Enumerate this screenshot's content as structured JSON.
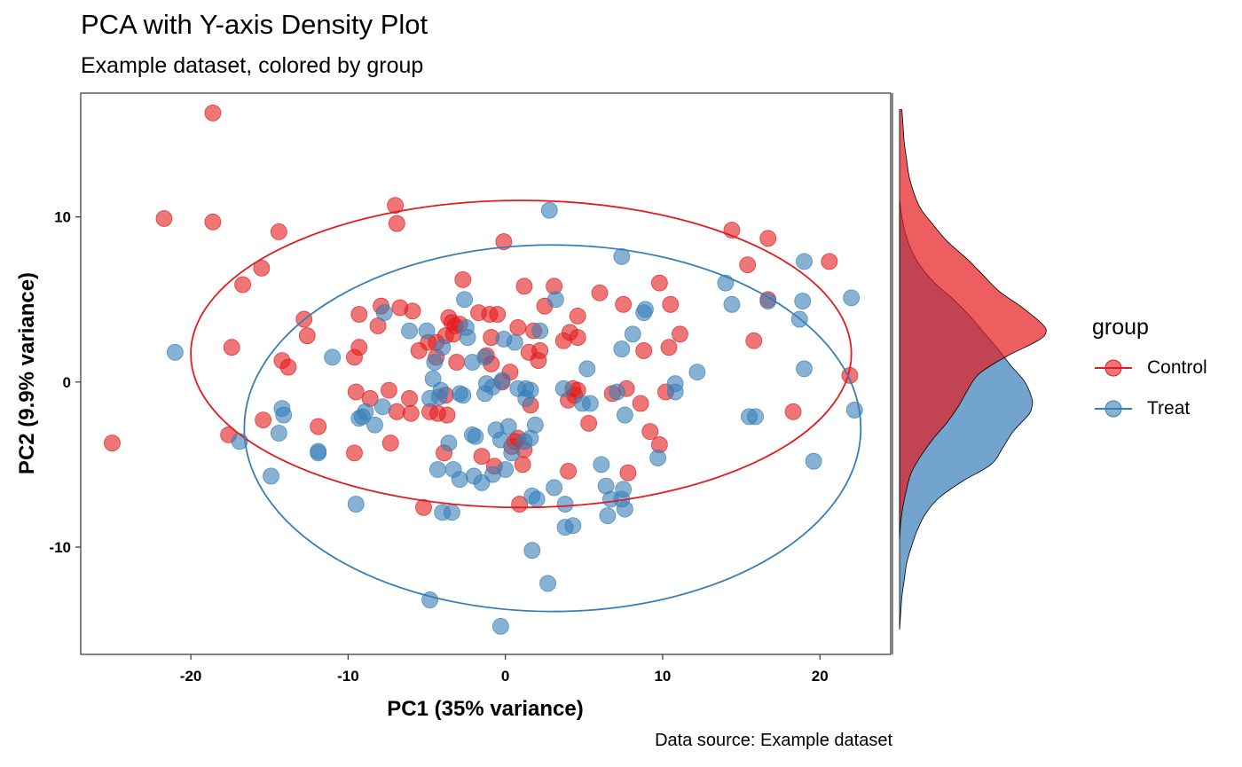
{
  "title": "PCA with Y-axis Density Plot",
  "subtitle": "Example dataset, colored by group",
  "caption": "Data source: Example dataset",
  "chart_data": {
    "type": "scatter",
    "xlabel": "PC1 (35% variance)",
    "ylabel": "PC2 (9.9% variance)",
    "xlim": [
      -27,
      24.5
    ],
    "ylim": [
      -16.5,
      17.5
    ],
    "xticks": [
      -20,
      -10,
      0,
      10,
      20
    ],
    "yticks": [
      -10,
      0,
      10
    ],
    "grid": false,
    "legend": {
      "title": "group",
      "position": "right"
    },
    "series": [
      {
        "name": "Control",
        "color": "#E41A1C",
        "ellipse": {
          "cx": 1,
          "cy": 1.7,
          "rx": 21,
          "ry": 9.3
        },
        "points": [
          [
            -18.6,
            16.3
          ],
          [
            -21.7,
            9.9
          ],
          [
            -18.6,
            9.7
          ],
          [
            -14.4,
            9.1
          ],
          [
            -7,
            10.7
          ],
          [
            -6.9,
            9.6
          ],
          [
            -15.5,
            6.9
          ],
          [
            -16.7,
            5.9
          ],
          [
            -12.8,
            3.8
          ],
          [
            -12.6,
            2.8
          ],
          [
            -17.4,
            2.1
          ],
          [
            -14.2,
            1.3
          ],
          [
            -13.8,
            0.9
          ],
          [
            -25,
            -3.7
          ],
          [
            -17.6,
            -3.2
          ],
          [
            -15.4,
            -2.3
          ],
          [
            -11.9,
            -2.7
          ],
          [
            -9.6,
            -4.3
          ],
          [
            -9.3,
            4.1
          ],
          [
            -9.6,
            1.5
          ],
          [
            -9.3,
            2.1
          ],
          [
            -7.9,
            4.6
          ],
          [
            -8.1,
            3.4
          ],
          [
            -6.7,
            4.5
          ],
          [
            -5.9,
            4.3
          ],
          [
            -4.4,
            2.4
          ],
          [
            -3.6,
            3.9
          ],
          [
            -3.4,
            3.6
          ],
          [
            -3.2,
            3.4
          ],
          [
            -2.9,
            3.5
          ],
          [
            -3.8,
            2.8
          ],
          [
            -3.3,
            2.9
          ],
          [
            -4.9,
            2.4
          ],
          [
            -5.5,
            1.9
          ],
          [
            -4.4,
            1.5
          ],
          [
            -3.1,
            1.2
          ],
          [
            -2.7,
            6.2
          ],
          [
            -1.7,
            4.2
          ],
          [
            -1,
            4.1
          ],
          [
            -0.9,
            2.7
          ],
          [
            -1.2,
            1.6
          ],
          [
            -0.9,
            1.1
          ],
          [
            -0.5,
            4.1
          ],
          [
            -0.1,
            8.5
          ],
          [
            1.2,
            5.8
          ],
          [
            0.8,
            3.3
          ],
          [
            1.8,
            3.1
          ],
          [
            1.5,
            1.8
          ],
          [
            1.6,
            -1.4
          ],
          [
            0.3,
            0.6
          ],
          [
            -0.2,
            0
          ],
          [
            3.1,
            5.8
          ],
          [
            2.5,
            4.6
          ],
          [
            4.6,
            4
          ],
          [
            3.7,
            2.5
          ],
          [
            4.1,
            3
          ],
          [
            4.6,
            2.7
          ],
          [
            2.1,
            1.3
          ],
          [
            2.2,
            1.9
          ],
          [
            4.3,
            -0.4
          ],
          [
            4.6,
            -0.5
          ],
          [
            4.4,
            -0.8
          ],
          [
            4,
            -1.1
          ],
          [
            5.3,
            -2.5
          ],
          [
            4,
            -5.4
          ],
          [
            6,
            5.4
          ],
          [
            7.5,
            4.7
          ],
          [
            9.8,
            6
          ],
          [
            10.5,
            4.7
          ],
          [
            11.1,
            2.9
          ],
          [
            10.4,
            2.1
          ],
          [
            8.8,
            1.9
          ],
          [
            10.2,
            -0.6
          ],
          [
            7.7,
            -0.4
          ],
          [
            6.8,
            -0.7
          ],
          [
            8.6,
            -1.3
          ],
          [
            9.2,
            -3
          ],
          [
            9.8,
            -3.8
          ],
          [
            7.8,
            -5.5
          ],
          [
            14.4,
            9.2
          ],
          [
            16.7,
            8.7
          ],
          [
            15.4,
            7.1
          ],
          [
            20.6,
            7.3
          ],
          [
            16.7,
            5
          ],
          [
            15.8,
            2.5
          ],
          [
            18.3,
            -1.8
          ],
          [
            21.9,
            0.4
          ],
          [
            -9.5,
            -0.6
          ],
          [
            -8.6,
            -1
          ],
          [
            -7.4,
            -0.5
          ],
          [
            -6.9,
            -1.8
          ],
          [
            -6.1,
            -1
          ],
          [
            -6,
            -1.9
          ],
          [
            -4.8,
            -1.8
          ],
          [
            -4.3,
            -1.9
          ],
          [
            -3.9,
            -4.3
          ],
          [
            -3.8,
            -0.8
          ],
          [
            -3.7,
            -2
          ],
          [
            -7.3,
            -3.7
          ],
          [
            -5.2,
            -7.6
          ],
          [
            -1.5,
            -4.5
          ],
          [
            -0.7,
            -5.1
          ],
          [
            1.1,
            -5
          ],
          [
            1.2,
            -4.1
          ],
          [
            0.6,
            -3.6
          ],
          [
            0.4,
            -3.9
          ],
          [
            0.8,
            -3.4
          ],
          [
            0.9,
            -7.4
          ]
        ]
      },
      {
        "name": "Treat",
        "color": "#377EB8",
        "ellipse": {
          "cx": 3,
          "cy": -2.8,
          "rx": 19.6,
          "ry": 11.1
        },
        "points": [
          [
            2.8,
            10.4
          ],
          [
            7.4,
            7.6
          ],
          [
            -21,
            1.8
          ],
          [
            -11,
            1.5
          ],
          [
            -16.9,
            -3.6
          ],
          [
            -14.2,
            -1.6
          ],
          [
            -14.1,
            -2
          ],
          [
            -14.4,
            -3.1
          ],
          [
            -11.9,
            -4.3
          ],
          [
            -14.9,
            -5.7
          ],
          [
            -9.5,
            -7.4
          ],
          [
            -9.1,
            -2.1
          ],
          [
            -8.9,
            -1.8
          ],
          [
            -8.3,
            -2.6
          ],
          [
            -7.8,
            -1.5
          ],
          [
            -7.7,
            4.2
          ],
          [
            -6.1,
            3.1
          ],
          [
            -5,
            3.1
          ],
          [
            -4.5,
            1.2
          ],
          [
            -4,
            2.1
          ],
          [
            -4.1,
            -0.5
          ],
          [
            -4.2,
            -0.9
          ],
          [
            -4.8,
            -1
          ],
          [
            -4.3,
            -5.3
          ],
          [
            -3.3,
            -5.3
          ],
          [
            -2.9,
            -5.9
          ],
          [
            -3.4,
            -7.9
          ],
          [
            -4,
            -7.9
          ],
          [
            -4.8,
            -13.2
          ],
          [
            -2.6,
            5
          ],
          [
            -2.5,
            3.3
          ],
          [
            -2.4,
            2.7
          ],
          [
            -2.1,
            1.2
          ],
          [
            -1.3,
            1.5
          ],
          [
            -2.9,
            -0.7
          ],
          [
            -2.7,
            -0.8
          ],
          [
            -2.1,
            -3.2
          ],
          [
            -1.5,
            -6.1
          ],
          [
            -0.8,
            -5.6
          ],
          [
            -0.3,
            -14.8
          ],
          [
            -1.2,
            -0.1
          ],
          [
            -1.3,
            -0.7
          ],
          [
            -0.8,
            -0.3
          ],
          [
            -0.6,
            -2.9
          ],
          [
            -0.3,
            -3.5
          ],
          [
            0.2,
            -2.7
          ],
          [
            0.4,
            -4.3
          ],
          [
            0,
            -5.3
          ],
          [
            0.6,
            2.4
          ],
          [
            -0.1,
            2.6
          ],
          [
            0.8,
            -0.4
          ],
          [
            1.3,
            -0.4
          ],
          [
            1.3,
            -1
          ],
          [
            1.6,
            -0.5
          ],
          [
            1.6,
            -3.4
          ],
          [
            1.2,
            -3.6
          ],
          [
            1.9,
            -2.6
          ],
          [
            1.7,
            -6.9
          ],
          [
            2,
            -7.1
          ],
          [
            1.7,
            -10.2
          ],
          [
            2.7,
            -12.2
          ],
          [
            2.2,
            3.1
          ],
          [
            3.2,
            5
          ],
          [
            3.7,
            -0.4
          ],
          [
            3.1,
            -6.4
          ],
          [
            3.8,
            -7.4
          ],
          [
            3.8,
            -8.8
          ],
          [
            4.3,
            -8.7
          ],
          [
            5.4,
            -1.3
          ],
          [
            6.1,
            -5
          ],
          [
            6.4,
            -6.3
          ],
          [
            6.7,
            -7.1
          ],
          [
            6.5,
            -8.1
          ],
          [
            7.5,
            -6.5
          ],
          [
            7.4,
            -7.1
          ],
          [
            7.6,
            -7.7
          ],
          [
            7.1,
            -0.6
          ],
          [
            7.6,
            -2
          ],
          [
            7.4,
            2
          ],
          [
            8.1,
            2.9
          ],
          [
            8.8,
            4.2
          ],
          [
            8.9,
            4.4
          ],
          [
            9.7,
            -4.6
          ],
          [
            10.8,
            -0.1
          ],
          [
            10.8,
            -0.6
          ],
          [
            12.2,
            0.6
          ],
          [
            14,
            6
          ],
          [
            14.4,
            4.7
          ],
          [
            15.5,
            -2.1
          ],
          [
            15.9,
            -2.1
          ],
          [
            16.7,
            4.9
          ],
          [
            19,
            7.3
          ],
          [
            18.9,
            4.9
          ],
          [
            18.7,
            3.8
          ],
          [
            19,
            0.8
          ],
          [
            22,
            5.1
          ],
          [
            22.2,
            -1.7
          ],
          [
            19.6,
            -4.8
          ],
          [
            -11.9,
            -4.2
          ],
          [
            -9.3,
            -2.2
          ],
          [
            -2,
            -5.7
          ],
          [
            -1.9,
            -3.3
          ],
          [
            -3.6,
            -3.7
          ],
          [
            -4.6,
            0.2
          ],
          [
            -0.2,
            0.1
          ],
          [
            5.2,
            0.8
          ],
          [
            4.9,
            -1.3
          ]
        ]
      }
    ],
    "density": [
      {
        "name": "Control",
        "color": "#E41A1C",
        "y": [
          16.5,
          15.5,
          14.5,
          13.5,
          12.5,
          11.5,
          10.5,
          9.5,
          8.5,
          7.5,
          6.5,
          5.5,
          4.5,
          3.5,
          3.0,
          2.5,
          1.5,
          0.5,
          -0.5,
          -1.5,
          -2.5,
          -3.5,
          -4.5,
          -5.5,
          -6.5,
          -7.5,
          -8.5,
          -9.5
        ],
        "density": [
          0.002,
          0.003,
          0.004,
          0.006,
          0.008,
          0.012,
          0.018,
          0.029,
          0.041,
          0.057,
          0.071,
          0.085,
          0.105,
          0.122,
          0.125,
          0.118,
          0.09,
          0.068,
          0.058,
          0.05,
          0.04,
          0.028,
          0.018,
          0.01,
          0.006,
          0.003,
          0.001,
          0.0
        ]
      },
      {
        "name": "Treat",
        "color": "#377EB8",
        "y": [
          11,
          10,
          9,
          8,
          7,
          6,
          5,
          4,
          3,
          2,
          1,
          0,
          -1,
          -1.5,
          -2,
          -3,
          -4,
          -5,
          -6,
          -7,
          -8,
          -9,
          -10,
          -11,
          -12,
          -13,
          -14,
          -15
        ],
        "density": [
          0.0,
          0.002,
          0.005,
          0.01,
          0.018,
          0.03,
          0.046,
          0.06,
          0.072,
          0.084,
          0.095,
          0.107,
          0.113,
          0.113,
          0.11,
          0.097,
          0.088,
          0.078,
          0.054,
          0.034,
          0.022,
          0.015,
          0.01,
          0.006,
          0.004,
          0.002,
          0.001,
          0.0
        ]
      }
    ]
  }
}
